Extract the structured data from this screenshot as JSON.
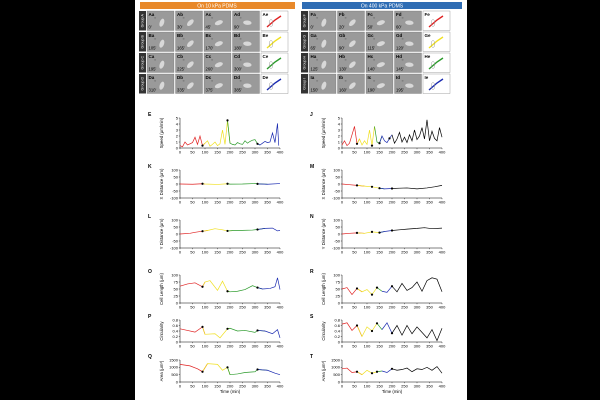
{
  "header": {
    "left": "On 10 kPa PDMS",
    "right": "On 400 kPa PDMS"
  },
  "colors": {
    "orange": "#e8892b",
    "blue": "#2f6db4",
    "red": "#e02020",
    "yellow": "#f0e020",
    "green": "#2a9a2a",
    "dblue": "#1a2ab0"
  },
  "images": {
    "left_groups": [
      "Group A",
      "Group B",
      "Group C",
      "Group D"
    ],
    "right_groups": [
      "Group F",
      "Group G",
      "Group H",
      "Group I"
    ],
    "left": [
      [
        {
          "id": "Aa",
          "t": "0'"
        },
        {
          "id": "Ab",
          "t": "30'"
        },
        {
          "id": "Ac",
          "t": "45'"
        },
        {
          "id": "Ad",
          "t": "90'"
        },
        {
          "id": "Ae",
          "t": ""
        }
      ],
      [
        {
          "id": "Ba",
          "t": "105'"
        },
        {
          "id": "Bb",
          "t": "165'"
        },
        {
          "id": "Bc",
          "t": "170'"
        },
        {
          "id": "Bd",
          "t": "180'"
        },
        {
          "id": "Be",
          "t": ""
        }
      ],
      [
        {
          "id": "Ca",
          "t": "195'"
        },
        {
          "id": "Cb",
          "t": "225'"
        },
        {
          "id": "Cc",
          "t": "260'"
        },
        {
          "id": "Cd",
          "t": "300'"
        },
        {
          "id": "Ce",
          "t": ""
        }
      ],
      [
        {
          "id": "Da",
          "t": "310'"
        },
        {
          "id": "Db",
          "t": "335'"
        },
        {
          "id": "Dc",
          "t": "375'"
        },
        {
          "id": "Dd",
          "t": "385'"
        },
        {
          "id": "De",
          "t": ""
        }
      ]
    ],
    "right": [
      [
        {
          "id": "Fa",
          "t": "0'"
        },
        {
          "id": "Fb",
          "t": "20'"
        },
        {
          "id": "Fc",
          "t": "50'"
        },
        {
          "id": "Fd",
          "t": "60'"
        },
        {
          "id": "Fe",
          "t": ""
        }
      ],
      [
        {
          "id": "Ga",
          "t": "65'"
        },
        {
          "id": "Gb",
          "t": "90'"
        },
        {
          "id": "Gc",
          "t": "115'"
        },
        {
          "id": "Gd",
          "t": "120'"
        },
        {
          "id": "Ge",
          "t": ""
        }
      ],
      [
        {
          "id": "Ha",
          "t": "125'"
        },
        {
          "id": "Hb",
          "t": "130'"
        },
        {
          "id": "Hc",
          "t": "140'"
        },
        {
          "id": "Hd",
          "t": "145'"
        },
        {
          "id": "He",
          "t": ""
        }
      ],
      [
        {
          "id": "Ia",
          "t": "150'"
        },
        {
          "id": "Ib",
          "t": "160'"
        },
        {
          "id": "Ic",
          "t": "190'"
        },
        {
          "id": "Id",
          "t": "195'"
        },
        {
          "id": "Ie",
          "t": ""
        }
      ]
    ]
  },
  "xlabel": "Time (min)",
  "chart_data": [
    {
      "type": "line",
      "panel": "E",
      "ylabel": "Speed (μm/min)",
      "ylim": [
        0,
        5
      ],
      "yticks": [
        0,
        1,
        2,
        3,
        4,
        5
      ],
      "xlim": [
        0,
        400
      ],
      "xticks": [
        0,
        50,
        100,
        150,
        200,
        250,
        300,
        350,
        400
      ],
      "x": [
        0,
        10,
        20,
        30,
        40,
        50,
        60,
        70,
        80,
        90,
        100,
        110,
        120,
        130,
        140,
        150,
        160,
        170,
        180,
        190,
        200,
        210,
        220,
        230,
        240,
        250,
        260,
        270,
        280,
        290,
        300,
        310,
        320,
        330,
        340,
        350,
        360,
        370,
        380,
        390,
        395
      ],
      "y": [
        0.4,
        0.2,
        1.0,
        0.5,
        0.7,
        0.9,
        1.8,
        0.6,
        2.0,
        0.4,
        0.8,
        1.2,
        0.3,
        0.6,
        1.0,
        0.4,
        0.7,
        3.0,
        0.6,
        4.6,
        0.8,
        0.6,
        0.5,
        0.9,
        0.7,
        0.6,
        1.2,
        0.8,
        1.1,
        1.3,
        1.4,
        0.7,
        0.5,
        0.8,
        1.1,
        0.9,
        1.0,
        2.5,
        0.9,
        4.1,
        0.4
      ],
      "segments": [
        [
          0,
          90,
          "red"
        ],
        [
          90,
          190,
          "yellow"
        ],
        [
          190,
          310,
          "green"
        ],
        [
          310,
          400,
          "dblue"
        ]
      ]
    },
    {
      "type": "line",
      "panel": "K",
      "ylabel": "X Distance (μm)",
      "ylim": [
        -100,
        100
      ],
      "yticks": [
        -100,
        -50,
        0,
        50,
        100
      ],
      "xlim": [
        0,
        400
      ],
      "xticks": [
        0,
        50,
        100,
        150,
        200,
        250,
        300,
        350,
        400
      ],
      "x": [
        0,
        50,
        90,
        100,
        150,
        190,
        200,
        250,
        300,
        310,
        350,
        400
      ],
      "y": [
        0,
        -2,
        2,
        0,
        -3,
        2,
        -1,
        0,
        3,
        1,
        -2,
        3
      ],
      "segments": [
        [
          0,
          90,
          "red"
        ],
        [
          90,
          190,
          "yellow"
        ],
        [
          190,
          310,
          "green"
        ],
        [
          310,
          400,
          "dblue"
        ]
      ]
    },
    {
      "type": "line",
      "panel": "L",
      "ylabel": "Y Distance (μm)",
      "ylim": [
        -100,
        100
      ],
      "yticks": [
        -100,
        -50,
        0,
        50,
        100
      ],
      "xlim": [
        0,
        400
      ],
      "xticks": [
        0,
        50,
        100,
        150,
        200,
        250,
        300,
        350,
        400
      ],
      "x": [
        0,
        40,
        60,
        90,
        110,
        140,
        170,
        190,
        210,
        250,
        290,
        310,
        340,
        370,
        390,
        400
      ],
      "y": [
        0,
        5,
        12,
        20,
        25,
        38,
        30,
        22,
        24,
        26,
        28,
        32,
        40,
        42,
        22,
        26
      ],
      "segments": [
        [
          0,
          90,
          "red"
        ],
        [
          90,
          190,
          "yellow"
        ],
        [
          190,
          310,
          "green"
        ],
        [
          310,
          400,
          "dblue"
        ]
      ]
    },
    {
      "type": "line",
      "panel": "O",
      "ylabel": "Cell Length (μm)",
      "ylim": [
        0,
        100
      ],
      "yticks": [
        0,
        25,
        50,
        75,
        100
      ],
      "xlim": [
        0,
        400
      ],
      "xticks": [
        0,
        50,
        100,
        150,
        200,
        250,
        300,
        350,
        400
      ],
      "x": [
        0,
        30,
        60,
        90,
        100,
        120,
        150,
        170,
        190,
        200,
        230,
        260,
        290,
        310,
        330,
        360,
        380,
        390,
        400
      ],
      "y": [
        60,
        68,
        72,
        58,
        75,
        80,
        45,
        78,
        42,
        40,
        42,
        48,
        62,
        55,
        50,
        52,
        58,
        90,
        48
      ],
      "segments": [
        [
          0,
          90,
          "red"
        ],
        [
          90,
          190,
          "yellow"
        ],
        [
          190,
          310,
          "green"
        ],
        [
          310,
          400,
          "dblue"
        ]
      ]
    },
    {
      "type": "line",
      "panel": "P",
      "ylabel": "Circularity",
      "ylim": [
        0,
        0.8
      ],
      "yticks": [
        0,
        0.2,
        0.4,
        0.6,
        0.8
      ],
      "xlim": [
        0,
        400
      ],
      "xticks": [
        0,
        50,
        100,
        150,
        200,
        250,
        300,
        350,
        400
      ],
      "x": [
        0,
        30,
        60,
        90,
        100,
        140,
        160,
        190,
        200,
        230,
        260,
        300,
        310,
        340,
        370,
        390,
        400
      ],
      "y": [
        0.48,
        0.42,
        0.36,
        0.55,
        0.28,
        0.3,
        0.15,
        0.48,
        0.5,
        0.4,
        0.42,
        0.35,
        0.42,
        0.4,
        0.3,
        0.45,
        0.15
      ],
      "segments": [
        [
          0,
          90,
          "red"
        ],
        [
          90,
          190,
          "yellow"
        ],
        [
          190,
          310,
          "green"
        ],
        [
          310,
          400,
          "dblue"
        ]
      ]
    },
    {
      "type": "line",
      "panel": "Q",
      "ylabel": "Area (μm²)",
      "ylim": [
        0,
        1500
      ],
      "yticks": [
        0,
        500,
        1000,
        1500
      ],
      "xlim": [
        0,
        400
      ],
      "xticks": [
        0,
        50,
        100,
        150,
        200,
        250,
        300,
        350,
        400
      ],
      "x": [
        0,
        40,
        70,
        90,
        110,
        150,
        170,
        190,
        200,
        230,
        260,
        300,
        310,
        350,
        380,
        400
      ],
      "y": [
        1200,
        1100,
        900,
        700,
        1250,
        1200,
        800,
        1000,
        500,
        550,
        650,
        700,
        850,
        800,
        600,
        500
      ],
      "segments": [
        [
          0,
          90,
          "red"
        ],
        [
          90,
          190,
          "yellow"
        ],
        [
          190,
          310,
          "green"
        ],
        [
          310,
          400,
          "dblue"
        ]
      ]
    },
    {
      "type": "line",
      "panel": "J",
      "ylabel": "Speed (μm/min)",
      "ylim": [
        0,
        5
      ],
      "yticks": [
        0,
        1,
        2,
        3,
        4,
        5
      ],
      "xlim": [
        0,
        400
      ],
      "xticks": [
        0,
        50,
        100,
        150,
        200,
        250,
        300,
        350,
        400
      ],
      "x": [
        0,
        10,
        20,
        30,
        40,
        50,
        60,
        70,
        80,
        90,
        100,
        110,
        120,
        130,
        140,
        150,
        160,
        170,
        180,
        190,
        200,
        210,
        220,
        230,
        240,
        250,
        260,
        270,
        280,
        290,
        300,
        310,
        320,
        330,
        340,
        350,
        360,
        370,
        380,
        390,
        400
      ],
      "y": [
        0.5,
        1.2,
        0.4,
        0.8,
        2.2,
        3.6,
        0.7,
        1.5,
        0.5,
        1.2,
        0.6,
        3.0,
        0.4,
        3.6,
        1.0,
        0.8,
        2.0,
        1.2,
        0.9,
        1.6,
        2.2,
        0.8,
        1.5,
        2.6,
        1.0,
        1.8,
        0.9,
        2.2,
        1.2,
        3.0,
        1.4,
        2.0,
        3.4,
        1.5,
        4.7,
        1.2,
        2.8,
        1.6,
        1.2,
        3.4,
        1.8
      ],
      "segments": [
        [
          0,
          60,
          "red"
        ],
        [
          60,
          125,
          "yellow"
        ],
        [
          125,
          150,
          "green"
        ],
        [
          150,
          195,
          "dblue"
        ],
        [
          195,
          400,
          "black"
        ]
      ]
    },
    {
      "type": "line",
      "panel": "M",
      "ylabel": "X Distance (μm)",
      "ylim": [
        -100,
        100
      ],
      "yticks": [
        -100,
        -50,
        0,
        50,
        100
      ],
      "xlim": [
        0,
        400
      ],
      "xticks": [
        0,
        50,
        100,
        150,
        200,
        250,
        300,
        350,
        400
      ],
      "x": [
        0,
        30,
        60,
        90,
        120,
        150,
        170,
        200,
        230,
        260,
        300,
        340,
        370,
        400
      ],
      "y": [
        0,
        -5,
        -10,
        -15,
        -20,
        -30,
        -35,
        -32,
        -30,
        -28,
        -35,
        -28,
        -20,
        -10
      ],
      "segments": [
        [
          0,
          60,
          "red"
        ],
        [
          60,
          125,
          "yellow"
        ],
        [
          125,
          150,
          "green"
        ],
        [
          150,
          195,
          "dblue"
        ],
        [
          195,
          400,
          "black"
        ]
      ]
    },
    {
      "type": "line",
      "panel": "N",
      "ylabel": "Y Distance (μm)",
      "ylim": [
        -100,
        100
      ],
      "yticks": [
        -100,
        -50,
        0,
        50,
        100
      ],
      "xlim": [
        0,
        400
      ],
      "xticks": [
        0,
        50,
        100,
        150,
        200,
        250,
        300,
        350,
        400
      ],
      "x": [
        0,
        30,
        60,
        90,
        120,
        150,
        170,
        200,
        230,
        260,
        300,
        330,
        360,
        400
      ],
      "y": [
        0,
        5,
        8,
        5,
        15,
        10,
        18,
        25,
        30,
        35,
        40,
        45,
        38,
        42
      ],
      "segments": [
        [
          0,
          60,
          "red"
        ],
        [
          60,
          125,
          "yellow"
        ],
        [
          125,
          150,
          "green"
        ],
        [
          150,
          195,
          "dblue"
        ],
        [
          195,
          400,
          "black"
        ]
      ]
    },
    {
      "type": "line",
      "panel": "R",
      "ylabel": "Cell Length (μm)",
      "ylim": [
        0,
        100
      ],
      "yticks": [
        0,
        25,
        50,
        75,
        100
      ],
      "xlim": [
        0,
        400
      ],
      "xticks": [
        0,
        50,
        100,
        150,
        200,
        250,
        300,
        350,
        400
      ],
      "x": [
        0,
        20,
        40,
        60,
        80,
        100,
        120,
        140,
        160,
        180,
        200,
        220,
        240,
        260,
        280,
        300,
        320,
        340,
        360,
        380,
        400
      ],
      "y": [
        50,
        55,
        30,
        52,
        40,
        48,
        30,
        55,
        42,
        38,
        60,
        40,
        70,
        45,
        55,
        75,
        42,
        80,
        90,
        85,
        40
      ],
      "segments": [
        [
          0,
          60,
          "red"
        ],
        [
          60,
          125,
          "yellow"
        ],
        [
          125,
          150,
          "green"
        ],
        [
          150,
          195,
          "dblue"
        ],
        [
          195,
          400,
          "black"
        ]
      ]
    },
    {
      "type": "line",
      "panel": "S",
      "ylabel": "Circularity",
      "ylim": [
        0,
        0.8
      ],
      "yticks": [
        0,
        0.2,
        0.4,
        0.6,
        0.8
      ],
      "xlim": [
        0,
        400
      ],
      "xticks": [
        0,
        50,
        100,
        150,
        200,
        250,
        300,
        350,
        400
      ],
      "x": [
        0,
        20,
        40,
        60,
        80,
        100,
        120,
        140,
        160,
        180,
        200,
        220,
        240,
        260,
        280,
        300,
        320,
        340,
        360,
        380,
        400
      ],
      "y": [
        0.65,
        0.7,
        0.42,
        0.6,
        0.2,
        0.55,
        0.4,
        0.68,
        0.45,
        0.7,
        0.32,
        0.6,
        0.25,
        0.6,
        0.3,
        0.55,
        0.35,
        0.15,
        0.45,
        0.05,
        0.5
      ],
      "segments": [
        [
          0,
          60,
          "red"
        ],
        [
          60,
          125,
          "yellow"
        ],
        [
          125,
          150,
          "green"
        ],
        [
          150,
          195,
          "dblue"
        ],
        [
          195,
          400,
          "black"
        ]
      ]
    },
    {
      "type": "line",
      "panel": "T",
      "ylabel": "Area (μm²)",
      "ylim": [
        0,
        1500
      ],
      "yticks": [
        0,
        500,
        1000,
        1500
      ],
      "xlim": [
        0,
        400
      ],
      "xticks": [
        0,
        50,
        100,
        150,
        200,
        250,
        300,
        350,
        400
      ],
      "x": [
        0,
        20,
        40,
        60,
        80,
        100,
        120,
        140,
        160,
        180,
        200,
        220,
        240,
        260,
        280,
        300,
        320,
        340,
        360,
        380,
        400
      ],
      "y": [
        900,
        950,
        650,
        700,
        500,
        800,
        600,
        700,
        750,
        650,
        900,
        800,
        850,
        950,
        700,
        900,
        850,
        1000,
        800,
        1050,
        600
      ],
      "segments": [
        [
          0,
          60,
          "red"
        ],
        [
          60,
          125,
          "yellow"
        ],
        [
          125,
          150,
          "green"
        ],
        [
          150,
          195,
          "dblue"
        ],
        [
          195,
          400,
          "black"
        ]
      ]
    }
  ]
}
